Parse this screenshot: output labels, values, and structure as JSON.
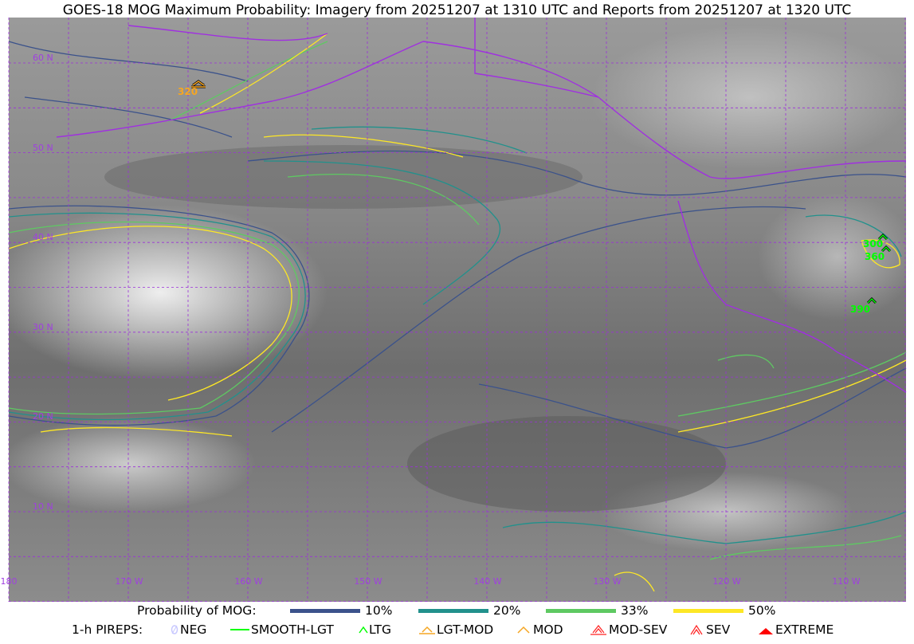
{
  "title": "GOES-18 MOG Maximum Probability: Imagery from 20251207 at 1310 UTC and Reports from 20251207 at 1320 UTC",
  "map": {
    "lat_labels": [
      "60 N",
      "50 N",
      "40 N",
      "30 N",
      "20 N",
      "10 N"
    ],
    "lon_labels": [
      "180",
      "170 W",
      "160 W",
      "150 W",
      "140 W",
      "130 W",
      "120 W",
      "110 W"
    ],
    "grid_color": "#9b30d9",
    "coast_color": "#a030e0",
    "reports": [
      {
        "label": "320",
        "type": "LGT-MOD",
        "color": "#f5a623"
      },
      {
        "label": "300",
        "type": "LTG",
        "color": "#00ff00"
      },
      {
        "label": "360",
        "type": "LTG",
        "color": "#00ff00"
      },
      {
        "label": "390",
        "type": "LTG",
        "color": "#00ff00"
      }
    ]
  },
  "legend": {
    "prob_title": "Probability of MOG:",
    "prob_levels": [
      {
        "label": "10%",
        "color": "#3b528b"
      },
      {
        "label": "20%",
        "color": "#21918c"
      },
      {
        "label": "33%",
        "color": "#5ec962"
      },
      {
        "label": "50%",
        "color": "#fde725"
      }
    ],
    "pirep_title": "1-h PIREPS:",
    "pireps": [
      {
        "label": "NEG",
        "icon": "neg-circle-slash-icon",
        "color": "#c8c8ff"
      },
      {
        "label": "SMOOTH-LGT",
        "icon": "dash-icon",
        "color": "#00ff00"
      },
      {
        "label": "LTG",
        "icon": "caret-icon",
        "color": "#00ff00"
      },
      {
        "label": "LGT-MOD",
        "icon": "caret-bar-icon",
        "color": "#f5a623"
      },
      {
        "label": "MOD",
        "icon": "caret-icon",
        "color": "#f5a623"
      },
      {
        "label": "MOD-SEV",
        "icon": "double-caret-bar-icon",
        "color": "#ff2020"
      },
      {
        "label": "SEV",
        "icon": "double-caret-icon",
        "color": "#ff2020"
      },
      {
        "label": "EXTREME",
        "icon": "filled-triangle-icon",
        "color": "#ff0000"
      }
    ]
  }
}
